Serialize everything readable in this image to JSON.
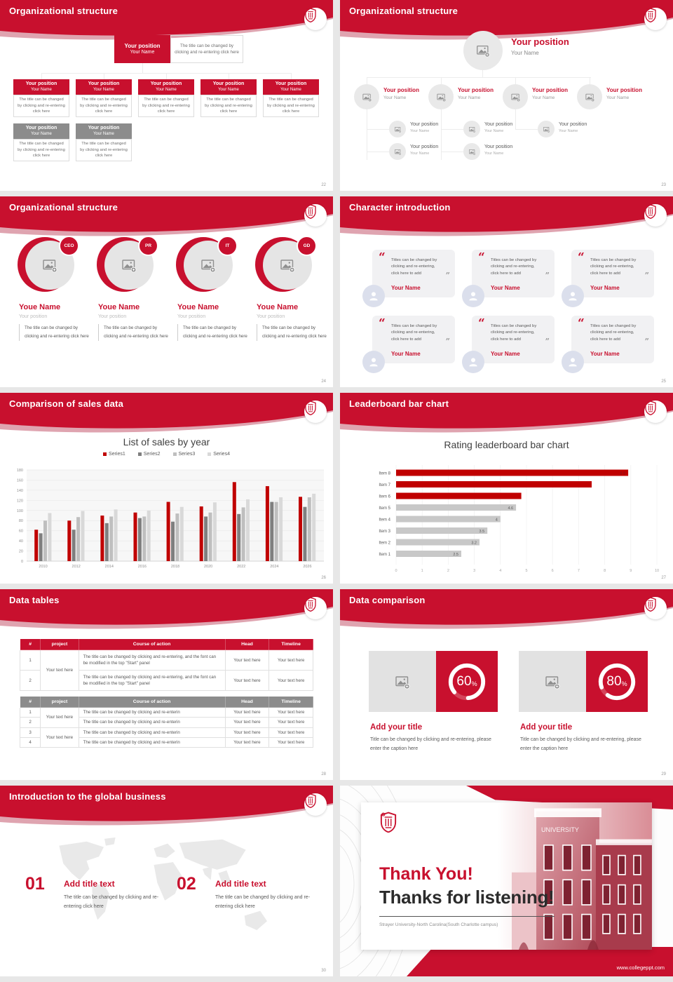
{
  "theme": {
    "red": "#c8102e",
    "chart_red": "#c00000",
    "gray": "#8c8c8c",
    "light_gray_bar": "#c8c8c8"
  },
  "slides": {
    "s22": {
      "title": "Organizational structure",
      "page": "22",
      "root": {
        "position": "Your position",
        "name": "Your Name",
        "desc": "The title can be changed by clicking and re-entering click here"
      },
      "level1": [
        {
          "position": "Your position",
          "name": "Your Name",
          "desc": "The title can be changed by clicking and re-entering click here"
        },
        {
          "position": "Your position",
          "name": "Your Name",
          "desc": "The title can be changed by clicking and re-entering click here"
        },
        {
          "position": "Your position",
          "name": "Your Name",
          "desc": "The title can be changed by clicking and re-entering click here"
        },
        {
          "position": "Your position",
          "name": "Your Name",
          "desc": "The title can be changed by clicking and re-entering click here"
        },
        {
          "position": "Your position",
          "name": "Your Name",
          "desc": "The title can be changed by clicking and re-entering click here"
        }
      ],
      "level2": [
        {
          "position": "Your position",
          "name": "Your Name",
          "desc": "The title can be changed by clicking and re-entering click here"
        },
        {
          "position": "Your position",
          "name": "Your Name",
          "desc": "The title can be changed by clicking and re-entering click here"
        }
      ]
    },
    "s23": {
      "title": "Organizational structure",
      "page": "23",
      "root": {
        "position": "Your position",
        "name": "Your Name"
      },
      "level1": [
        {
          "position": "Your position",
          "name": "Your Name"
        },
        {
          "position": "Your position",
          "name": "Your Name"
        },
        {
          "position": "Your position",
          "name": "Your Name"
        },
        {
          "position": "Your position",
          "name": "Your Name"
        }
      ],
      "level2_rows": [
        [
          {
            "col": 0,
            "position": "Your position",
            "name": "Your Name"
          },
          {
            "col": 1,
            "position": "Your position",
            "name": "Your Name"
          },
          {
            "col": 2,
            "position": "Your position",
            "name": "Your Name"
          }
        ],
        [
          {
            "col": 0,
            "position": "Your position",
            "name": "Your Name"
          },
          {
            "col": 1,
            "position": "Your position",
            "name": "Your Name"
          }
        ]
      ]
    },
    "s24": {
      "title": "Organizational structure",
      "page": "24",
      "members": [
        {
          "badge": "CEO",
          "name": "Youe Name",
          "position": "Your position",
          "desc": "The title can be changed by clicking and re-entering click here"
        },
        {
          "badge": "PR",
          "name": "Youe Name",
          "position": "Your position",
          "desc": "The title can be changed by clicking and re-entering click here"
        },
        {
          "badge": "IT",
          "name": "Youe Name",
          "position": "Your position",
          "desc": "The title can be changed by clicking and re-entering click here"
        },
        {
          "badge": "GD",
          "name": "Youe Name",
          "position": "Your position",
          "desc": "The title can be changed by clicking and re-entering click here"
        }
      ]
    },
    "s25": {
      "title": "Character introduction",
      "page": "25",
      "cards": [
        {
          "quote": "Titles can be changed by clicking and re-entering, click here to add",
          "name": "Your Name"
        },
        {
          "quote": "Titles can be changed by clicking and re-entering, click here to add",
          "name": "Your Name"
        },
        {
          "quote": "Titles can be changed by clicking and re-entering, click here to add",
          "name": "Your Name"
        },
        {
          "quote": "Titles can be changed by clicking and re-entering, click here to add",
          "name": "Your Name"
        },
        {
          "quote": "Titles can be changed by clicking and re-entering, click here to add",
          "name": "Your Name"
        },
        {
          "quote": "Titles can be changed by clicking and re-entering, click here to add",
          "name": "Your Name"
        }
      ]
    },
    "s26": {
      "title": "Comparison of sales data",
      "page": "26"
    },
    "s27": {
      "title": "Leaderboard bar chart",
      "page": "27"
    },
    "s28": {
      "title": "Data tables",
      "page": "28",
      "table1": {
        "headers": [
          "#",
          "project",
          "Course of action",
          "Head",
          "Timeline"
        ],
        "project_merged": "Your text here",
        "rows": [
          {
            "num": "1",
            "desc": "The title can be changed by clicking and re-entering, and the font can be modified in the top \"Start\" panel",
            "head": "Your text here",
            "timeline": "Your text here"
          },
          {
            "num": "2",
            "desc": "The title can be changed by clicking and re-entering, and the font can be modified in the top \"Start\" panel",
            "head": "Your text here",
            "timeline": "Your text here"
          }
        ]
      },
      "table2": {
        "headers": [
          "#",
          "project",
          "Course of action",
          "Head",
          "Timeline"
        ],
        "project_merged": [
          "Your text here",
          "Your text here"
        ],
        "rows": [
          {
            "num": "1",
            "desc": "The title can be changed by clicking and re-enterin",
            "head": "Your text here",
            "timeline": "Your text here"
          },
          {
            "num": "2",
            "desc": "The title can be changed by clicking and re-enterin",
            "head": "Your text here",
            "timeline": "Your text here"
          },
          {
            "num": "3",
            "desc": "The title can be changed by clicking and re-enterin",
            "head": "Your text here",
            "timeline": "Your text here"
          },
          {
            "num": "4",
            "desc": "The title can be changed by clicking and re-enterin",
            "head": "Your text here",
            "timeline": "Your text here"
          }
        ]
      }
    },
    "s29": {
      "title": "Data comparison",
      "page": "29",
      "panels": [
        {
          "percent": "60",
          "percent_sign": "%",
          "title": "Add your title",
          "caption": "Title can be changed by clicking and re-entering, please enter the caption here"
        },
        {
          "percent": "80",
          "percent_sign": "%",
          "title": "Add your title",
          "caption": "Title can be changed by clicking and re-entering, please enter the caption here"
        }
      ]
    },
    "s30": {
      "title": "Introduction to the global business",
      "page": "30",
      "items": [
        {
          "number": "01",
          "title": "Add title text",
          "caption": "The title can be changed by clicking and re-entering click here"
        },
        {
          "number": "02",
          "title": "Add title text",
          "caption": "The title can be changed by clicking and re-entering click here"
        }
      ]
    },
    "s31": {
      "heading": "Thank You!",
      "subheading": "Thanks for listening!",
      "university": "Strayer University-North Carolina(South Charlotte campus)",
      "website": "www.collegeppt.com",
      "building_sign": "UNIVERSITY"
    }
  },
  "chart_data": [
    {
      "type": "bar",
      "title": "List of sales by year",
      "categories": [
        "2010",
        "2012",
        "2014",
        "2016",
        "2018",
        "2020",
        "2022",
        "2024",
        "2026"
      ],
      "series": [
        {
          "name": "Series1",
          "color": "#c00000",
          "values": [
            62,
            80,
            90,
            96,
            117,
            108,
            156,
            148,
            127
          ]
        },
        {
          "name": "Series2",
          "color": "#7f7f7f",
          "values": [
            55,
            62,
            75,
            85,
            78,
            88,
            93,
            117,
            107
          ]
        },
        {
          "name": "Series3",
          "color": "#bfbfbf",
          "values": [
            80,
            87,
            88,
            88,
            94,
            96,
            106,
            117,
            126
          ]
        },
        {
          "name": "Series4",
          "color": "#d9d9d9",
          "values": [
            95,
            99,
            102,
            100,
            107,
            116,
            122,
            126,
            133
          ]
        }
      ],
      "xlabel": "",
      "ylabel": "",
      "ylim": [
        0,
        180
      ],
      "ytick_step": 20,
      "grid": true,
      "legend_position": "top"
    },
    {
      "type": "bar",
      "orientation": "horizontal",
      "title": "Rating leaderboard bar chart",
      "categories": [
        "Item 8",
        "Item 7",
        "Item 6",
        "Item 5",
        "Item 4",
        "Item 3",
        "Item 2",
        "Item 1"
      ],
      "values": [
        8.9,
        7.5,
        4.8,
        4.6,
        4,
        3.5,
        3.2,
        2.5
      ],
      "bar_colors": [
        "#c00000",
        "#c00000",
        "#c00000",
        "#c8c8c8",
        "#c8c8c8",
        "#c8c8c8",
        "#c8c8c8",
        "#c8c8c8"
      ],
      "value_labels": [
        "8.9",
        "",
        "",
        "4.6",
        "4",
        "3.5",
        "3.2",
        "2.5"
      ],
      "xlim": [
        0,
        10
      ],
      "xticks": [
        0,
        1,
        2,
        3,
        4,
        5,
        6,
        7,
        8,
        9,
        10
      ],
      "grid": true,
      "legend_position": "none"
    }
  ]
}
